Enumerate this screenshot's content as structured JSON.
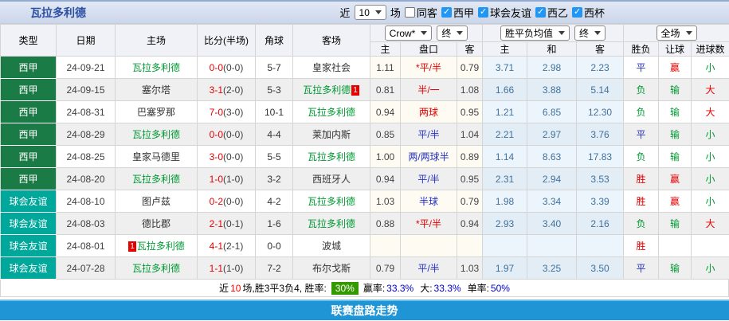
{
  "title_bar": {
    "team_name": "瓦拉多利德",
    "near_label": "近",
    "near_count": "10",
    "matches_label": "场",
    "filters": [
      {
        "label": "同客",
        "checked": false
      },
      {
        "label": "西甲",
        "checked": true
      },
      {
        "label": "球会友谊",
        "checked": true
      },
      {
        "label": "西乙",
        "checked": true
      },
      {
        "label": "西杯",
        "checked": true
      }
    ]
  },
  "table": {
    "col_headers": [
      "类型",
      "日期",
      "主场",
      "比分(半场)",
      "角球",
      "客场"
    ],
    "sub_headers": [
      "主",
      "盘口",
      "客",
      "主",
      "和",
      "客",
      "胜负",
      "让球",
      "进球数"
    ],
    "selects": {
      "company": "Crow*",
      "final_1": "终",
      "avg_type": "胜平负均值",
      "final_2": "终",
      "goals_scope": "全场"
    },
    "rows": [
      {
        "type": "西甲",
        "date": "24-09-21",
        "home": "瓦拉多利德",
        "home_is_self": true,
        "home_badge": "",
        "score": "0-0",
        "half_score": "(0-0)",
        "corners": "5-7",
        "away": "皇家社会",
        "away_is_self": false,
        "away_badge": "",
        "home_odds": "1.11",
        "handicap": "*平/半",
        "handicap_color": "red",
        "away_odds": "0.79",
        "avg_home": "3.71",
        "avg_draw": "2.98",
        "avg_away": "2.23",
        "result": "平",
        "result_color": "blue",
        "handicap_result": "赢",
        "handicap_result_color": "red",
        "goals_result": "小",
        "goals_result_color": "green"
      },
      {
        "type": "西甲",
        "date": "24-09-15",
        "home": "塞尔塔",
        "home_is_self": false,
        "home_badge": "",
        "score": "3-1",
        "half_score": "(2-0)",
        "corners": "5-3",
        "away": "瓦拉多利德",
        "away_is_self": true,
        "away_badge": "1",
        "home_odds": "0.81",
        "handicap": "半/一",
        "handicap_color": "red",
        "away_odds": "1.08",
        "avg_home": "1.66",
        "avg_draw": "3.88",
        "avg_away": "5.14",
        "result": "负",
        "result_color": "green",
        "handicap_result": "输",
        "handicap_result_color": "green",
        "goals_result": "大",
        "goals_result_color": "red"
      },
      {
        "type": "西甲",
        "date": "24-08-31",
        "home": "巴塞罗那",
        "home_is_self": false,
        "home_badge": "",
        "score": "7-0",
        "half_score": "(3-0)",
        "corners": "10-1",
        "away": "瓦拉多利德",
        "away_is_self": true,
        "away_badge": "",
        "home_odds": "0.94",
        "handicap": "两球",
        "handicap_color": "red",
        "away_odds": "0.95",
        "avg_home": "1.21",
        "avg_draw": "6.85",
        "avg_away": "12.30",
        "result": "负",
        "result_color": "green",
        "handicap_result": "输",
        "handicap_result_color": "green",
        "goals_result": "大",
        "goals_result_color": "red"
      },
      {
        "type": "西甲",
        "date": "24-08-29",
        "home": "瓦拉多利德",
        "home_is_self": true,
        "home_badge": "",
        "score": "0-0",
        "half_score": "(0-0)",
        "corners": "4-4",
        "away": "莱加内斯",
        "away_is_self": false,
        "away_badge": "",
        "home_odds": "0.85",
        "handicap": "平/半",
        "handicap_color": "blue",
        "away_odds": "1.04",
        "avg_home": "2.21",
        "avg_draw": "2.97",
        "avg_away": "3.76",
        "result": "平",
        "result_color": "blue",
        "handicap_result": "输",
        "handicap_result_color": "green",
        "goals_result": "小",
        "goals_result_color": "green"
      },
      {
        "type": "西甲",
        "date": "24-08-25",
        "home": "皇家马德里",
        "home_is_self": false,
        "home_badge": "",
        "score": "3-0",
        "half_score": "(0-0)",
        "corners": "5-5",
        "away": "瓦拉多利德",
        "away_is_self": true,
        "away_badge": "",
        "home_odds": "1.00",
        "handicap": "两/两球半",
        "handicap_color": "blue",
        "away_odds": "0.89",
        "avg_home": "1.14",
        "avg_draw": "8.63",
        "avg_away": "17.83",
        "result": "负",
        "result_color": "green",
        "handicap_result": "输",
        "handicap_result_color": "green",
        "goals_result": "小",
        "goals_result_color": "green"
      },
      {
        "type": "西甲",
        "date": "24-08-20",
        "home": "瓦拉多利德",
        "home_is_self": true,
        "home_badge": "",
        "score": "1-0",
        "half_score": "(1-0)",
        "corners": "3-2",
        "away": "西班牙人",
        "away_is_self": false,
        "away_badge": "",
        "home_odds": "0.94",
        "handicap": "平/半",
        "handicap_color": "blue",
        "away_odds": "0.95",
        "avg_home": "2.31",
        "avg_draw": "2.94",
        "avg_away": "3.53",
        "result": "胜",
        "result_color": "red",
        "handicap_result": "赢",
        "handicap_result_color": "red",
        "goals_result": "小",
        "goals_result_color": "green"
      },
      {
        "type": "球会友谊",
        "date": "24-08-10",
        "home": "图卢兹",
        "home_is_self": false,
        "home_badge": "",
        "score": "0-2",
        "half_score": "(0-0)",
        "corners": "4-2",
        "away": "瓦拉多利德",
        "away_is_self": true,
        "away_badge": "",
        "home_odds": "1.03",
        "handicap": "半球",
        "handicap_color": "blue",
        "away_odds": "0.79",
        "avg_home": "1.98",
        "avg_draw": "3.34",
        "avg_away": "3.39",
        "result": "胜",
        "result_color": "red",
        "handicap_result": "赢",
        "handicap_result_color": "red",
        "goals_result": "小",
        "goals_result_color": "green"
      },
      {
        "type": "球会友谊",
        "date": "24-08-03",
        "home": "德比郡",
        "home_is_self": false,
        "home_badge": "",
        "score": "2-1",
        "half_score": "(0-1)",
        "corners": "1-6",
        "away": "瓦拉多利德",
        "away_is_self": true,
        "away_badge": "",
        "home_odds": "0.88",
        "handicap": "*平/半",
        "handicap_color": "red",
        "away_odds": "0.94",
        "avg_home": "2.93",
        "avg_draw": "3.40",
        "avg_away": "2.16",
        "result": "负",
        "result_color": "green",
        "handicap_result": "输",
        "handicap_result_color": "green",
        "goals_result": "大",
        "goals_result_color": "red"
      },
      {
        "type": "球会友谊",
        "date": "24-08-01",
        "home": "瓦拉多利德",
        "home_is_self": true,
        "home_badge": "1",
        "score": "4-1",
        "half_score": "(2-1)",
        "corners": "0-0",
        "away": "波城",
        "away_is_self": false,
        "away_badge": "",
        "home_odds": "",
        "handicap": "",
        "handicap_color": "",
        "away_odds": "",
        "avg_home": "",
        "avg_draw": "",
        "avg_away": "",
        "result": "胜",
        "result_color": "red",
        "handicap_result": "",
        "handicap_result_color": "",
        "goals_result": "",
        "goals_result_color": ""
      },
      {
        "type": "球会友谊",
        "date": "24-07-28",
        "home": "瓦拉多利德",
        "home_is_self": true,
        "home_badge": "",
        "score": "1-1",
        "half_score": "(1-0)",
        "corners": "7-2",
        "away": "布尔戈斯",
        "away_is_self": false,
        "away_badge": "",
        "home_odds": "0.79",
        "handicap": "平/半",
        "handicap_color": "blue",
        "away_odds": "1.03",
        "avg_home": "1.97",
        "avg_draw": "3.25",
        "avg_away": "3.50",
        "result": "平",
        "result_color": "blue",
        "handicap_result": "输",
        "handicap_result_color": "green",
        "goals_result": "小",
        "goals_result_color": "green"
      }
    ]
  },
  "summary": {
    "near_label": "近",
    "near_count": "10",
    "record_text": "场,胜3平3负4, 胜率:",
    "win_rate": "30%",
    "win_odds_label": "赢率:",
    "win_odds_rate": "33.3%",
    "big_label": "大:",
    "big_rate": "33.3%",
    "single_label": "单率:",
    "single_rate": "50%"
  },
  "footer": {
    "title": "联赛盘路走势"
  },
  "colors": {
    "league_cell_bg": "#1B7B46",
    "friendly_cell_bg": "#00A79B",
    "self_team_text": "#009933",
    "score_red": "#E60000",
    "handicap_red": "#E60000",
    "handicap_blue": "#2430C8",
    "avg_odds_text": "#41719C",
    "win_red": "#E60000",
    "draw_blue": "#2430C8",
    "lose_green": "#009933",
    "rate_badge_bg": "#339900",
    "footer_bar_bg": "#2095D5"
  }
}
